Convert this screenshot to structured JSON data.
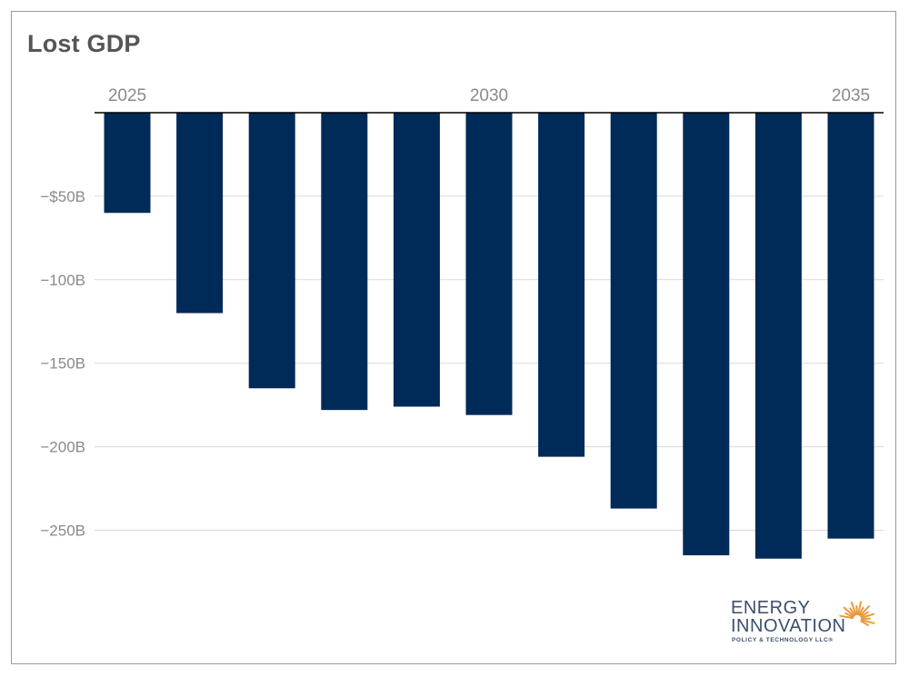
{
  "chart_title": "Lost GDP",
  "logo": {
    "line1": "ENERGY",
    "line2": "INNOVATION",
    "tagline": "POLICY & TECHNOLOGY LLC®"
  },
  "chart_data": {
    "type": "bar",
    "title": "Lost GDP",
    "xlabel": "",
    "ylabel": "",
    "categories": [
      "2025",
      "2026",
      "2027",
      "2028",
      "2029",
      "2030",
      "2031",
      "2032",
      "2033",
      "2034",
      "2035"
    ],
    "values": [
      -60,
      -120,
      -165,
      -178,
      -176,
      -181,
      -206,
      -237,
      -265,
      -267,
      -255
    ],
    "x_tick_labels": [
      "2025",
      "2030",
      "2035"
    ],
    "y_ticks": [
      -50,
      -100,
      -150,
      -200,
      -250
    ],
    "y_tick_labels": [
      "−$50B",
      "−100B",
      "−150B",
      "−200B",
      "−250B"
    ],
    "ylim": [
      -280,
      0
    ],
    "x_axis_position": "top",
    "grid": true,
    "bar_color": "#002a57",
    "grid_color": "#d9d9d9",
    "axis_color": "#000000",
    "text_color": "#8a8a8a"
  }
}
